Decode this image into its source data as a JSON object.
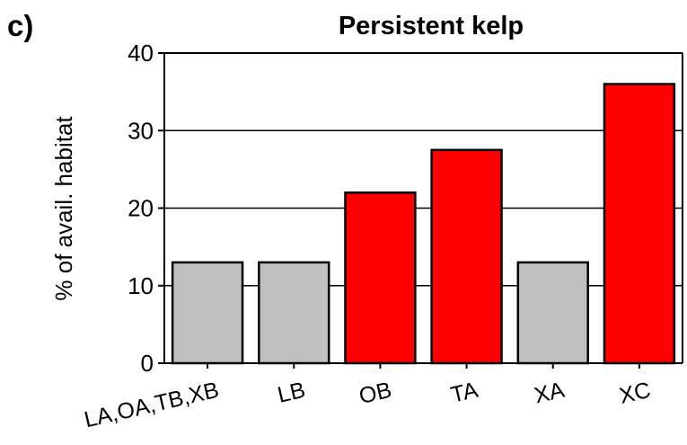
{
  "panel_label": "c)",
  "chart_data": {
    "type": "bar",
    "title": "Persistent kelp",
    "xlabel": "",
    "ylabel": "% of avail. habitat",
    "categories": [
      "LA,OA,TB,XB",
      "LB",
      "OB",
      "TA",
      "XA",
      "XC"
    ],
    "values": [
      13,
      13,
      22,
      27.5,
      13,
      36
    ],
    "bar_colors": [
      "#c0c0c0",
      "#c0c0c0",
      "#ff0000",
      "#ff0000",
      "#c0c0c0",
      "#ff0000"
    ],
    "ylim": [
      0,
      40
    ],
    "yticks": [
      0,
      10,
      20,
      30,
      40
    ],
    "grid": true,
    "legend": "none"
  }
}
